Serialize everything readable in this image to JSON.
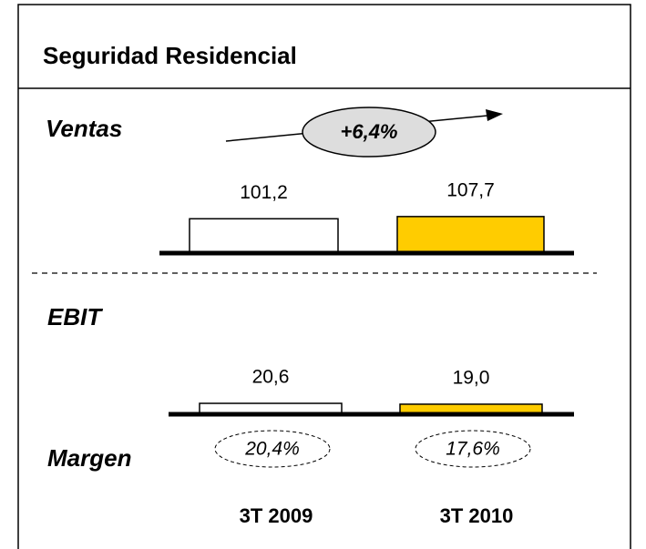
{
  "header": {
    "title": "Seguridad Residencial"
  },
  "chart_data": [
    {
      "type": "bar",
      "title": "Ventas",
      "annotation": "+6,4%",
      "categories": [
        null,
        null
      ],
      "values": [
        101.2,
        107.7
      ],
      "value_labels": [
        "101,2",
        "107,7"
      ],
      "colors": [
        "#ffffff",
        "#ffcc00"
      ],
      "ylim": [
        0,
        110
      ]
    },
    {
      "type": "bar",
      "title": "EBIT",
      "categories": [
        "3T 2009",
        "3T 2010"
      ],
      "values": [
        20.6,
        19.0
      ],
      "value_labels": [
        "20,6",
        "19,0"
      ],
      "colors": [
        "#ffffff",
        "#ffcc00"
      ],
      "ylim": [
        0,
        110
      ],
      "margin": {
        "label": "Margen",
        "values": [
          "20,4%",
          "17,6%"
        ]
      }
    }
  ]
}
